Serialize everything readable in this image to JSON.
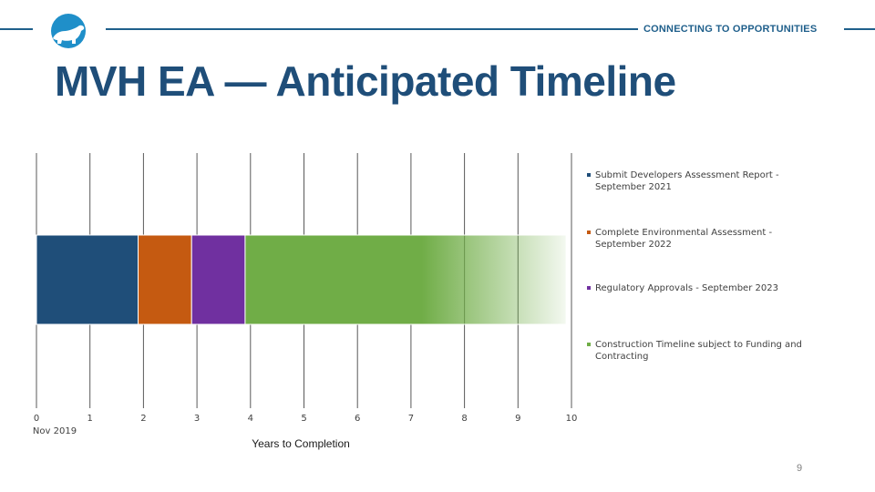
{
  "header": {
    "tagline": "CONNECTING TO OPPORTUNITIES",
    "title": "MVH EA — Anticipated Timeline",
    "logo_icon": "polar-bear-icon",
    "brand_color": "#1f5f8b"
  },
  "chart_data": {
    "type": "bar",
    "orientation": "horizontal",
    "stacked": true,
    "xlabel": "Years to Completion",
    "xlim": [
      0,
      10
    ],
    "x_ticks": [
      "0",
      "1",
      "2",
      "3",
      "4",
      "5",
      "6",
      "7",
      "8",
      "9",
      "10"
    ],
    "x_origin_label": "Nov 2019",
    "grid": true,
    "legend_position": "right",
    "series": [
      {
        "name": "Submit Developers Assessment Report - September 2021",
        "start": 0,
        "value": 1.9,
        "color": "#1f4e79"
      },
      {
        "name": "Complete Environmental Assessment - September 2022",
        "start": 1.9,
        "value": 1.0,
        "color": "#c55a11"
      },
      {
        "name": "Regulatory Approvals - September 2023",
        "start": 2.9,
        "value": 1.0,
        "color": "#7030a0"
      },
      {
        "name": "Construction Timeline subject to Funding and Contracting",
        "start": 3.9,
        "value": 6.0,
        "color": "#70ad47",
        "fades_out": true
      }
    ]
  },
  "page_number": "9"
}
